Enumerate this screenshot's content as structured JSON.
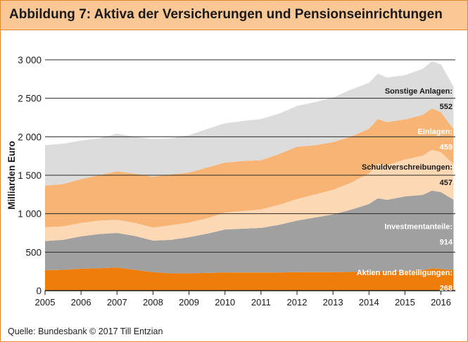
{
  "header": {
    "title": "Abbildung 7: Aktiva der Versicherungen und Pensionseinrichtungen"
  },
  "footer": {
    "source": "Quelle: Bundesbank © 2017 Till Entzian"
  },
  "chart_data": {
    "type": "area",
    "stacked": true,
    "ylabel": "Milliarden Euro",
    "xlabel": "",
    "ylim": [
      0,
      3000
    ],
    "yticks": [
      0,
      500,
      1000,
      1500,
      2000,
      2500,
      3000
    ],
    "ytick_labels": [
      "0",
      "500",
      "1 000",
      "1 500",
      "2 000",
      "2 500",
      "3 000"
    ],
    "xlim": [
      2005,
      2016.4
    ],
    "xticks": [
      2005,
      2006,
      2007,
      2008,
      2009,
      2010,
      2011,
      2012,
      2013,
      2014,
      2015,
      2016
    ],
    "xtick_labels": [
      "2005",
      "2006",
      "2007",
      "2008",
      "2009",
      "2010",
      "2011",
      "2012",
      "2013",
      "2014",
      "2015",
      "2016"
    ],
    "grid": "horizontal",
    "x": [
      2005,
      2005.5,
      2006,
      2006.5,
      2007,
      2007.5,
      2008,
      2008.5,
      2009,
      2009.5,
      2010,
      2010.5,
      2011,
      2011.5,
      2012,
      2012.5,
      2013,
      2013.5,
      2014,
      2014.25,
      2014.5,
      2015,
      2015.5,
      2015.75,
      2016,
      2016.35
    ],
    "series": [
      {
        "name": "Aktien und Beteiligungen",
        "color": "#ef7d0a",
        "label_value": "268",
        "values": [
          265,
          270,
          285,
          290,
          300,
          270,
          240,
          225,
          225,
          230,
          235,
          235,
          235,
          235,
          240,
          240,
          240,
          242,
          245,
          250,
          250,
          255,
          265,
          290,
          280,
          268
        ]
      },
      {
        "name": "Investmentanteile",
        "color": "#a0a0a0",
        "label_value": "914",
        "values": [
          380,
          390,
          420,
          445,
          450,
          440,
          410,
          435,
          470,
          510,
          560,
          570,
          580,
          620,
          670,
          710,
          750,
          810,
          880,
          950,
          930,
          970,
          980,
          1010,
          1000,
          914
        ]
      },
      {
        "name": "Schuldverschreibungen",
        "color": "#fcd8b5",
        "label_value": "457",
        "values": [
          180,
          175,
          175,
          175,
          170,
          170,
          170,
          190,
          190,
          200,
          220,
          230,
          240,
          260,
          280,
          300,
          320,
          350,
          400,
          450,
          450,
          480,
          510,
          530,
          520,
          457
        ]
      },
      {
        "name": "Einlagen",
        "color": "#f7b474",
        "label_value": "459",
        "values": [
          540,
          550,
          570,
          590,
          630,
          640,
          660,
          660,
          650,
          660,
          650,
          650,
          640,
          660,
          680,
          640,
          620,
          600,
          580,
          580,
          560,
          520,
          530,
          540,
          520,
          459
        ]
      },
      {
        "name": "Sonstige Anlagen",
        "color": "#dcdcdc",
        "label_value": "552",
        "values": [
          525,
          525,
          500,
          480,
          490,
          480,
          490,
          470,
          485,
          500,
          510,
          520,
          535,
          525,
          530,
          560,
          580,
          610,
          595,
          590,
          580,
          575,
          600,
          610,
          620,
          552
        ]
      }
    ],
    "annotations": [
      {
        "series": 4,
        "text": "Sonstige Anlagen:",
        "value": "552"
      },
      {
        "series": 3,
        "text": "Einlagen:",
        "value": "459"
      },
      {
        "series": 2,
        "text": "Schuldverschreibungen:",
        "value": "457"
      },
      {
        "series": 1,
        "text": "Investmentanteile:",
        "value": "914"
      },
      {
        "series": 0,
        "text": "Aktien und Beteiligungen:",
        "value": "268"
      }
    ]
  }
}
